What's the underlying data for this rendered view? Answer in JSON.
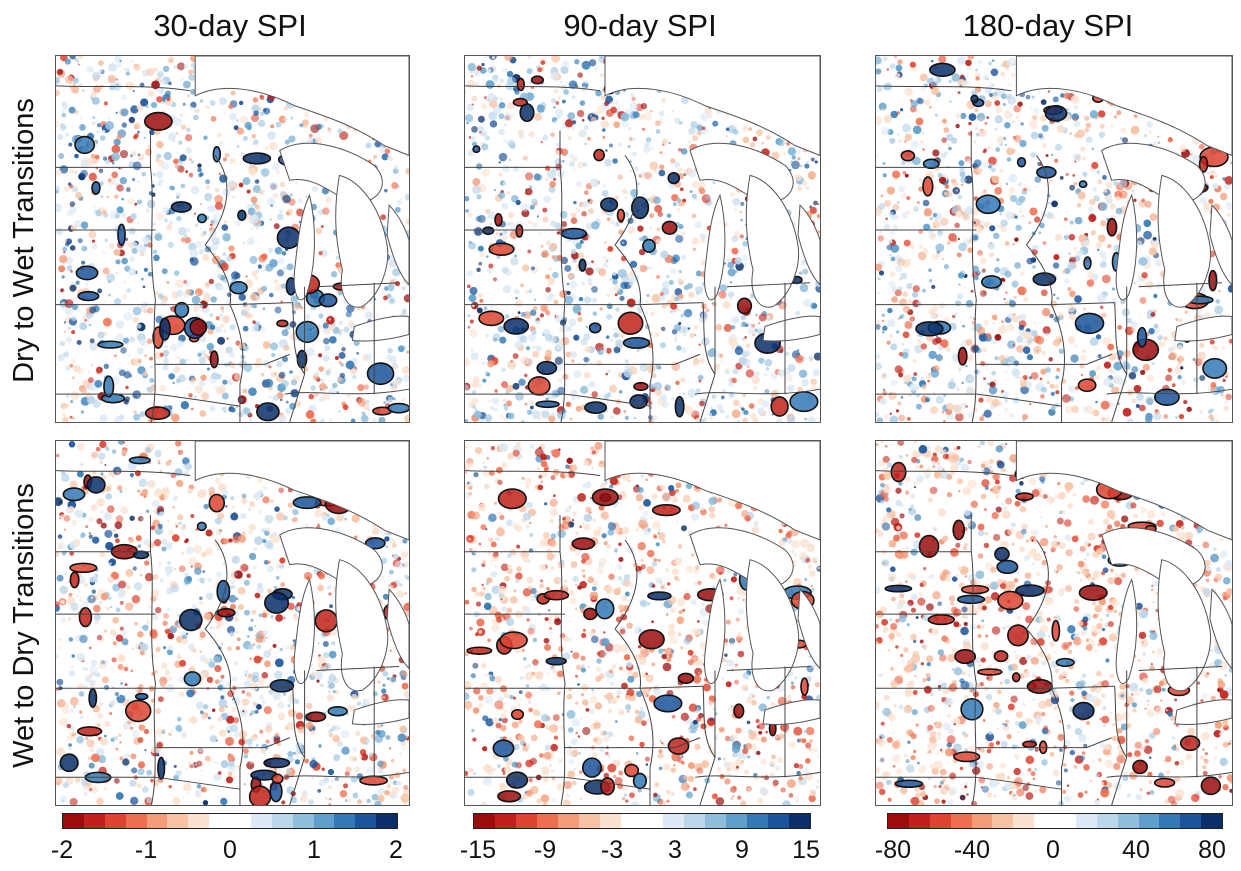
{
  "columns": [
    {
      "title": "30-day SPI",
      "ticks": [
        "-2",
        "-1",
        "0",
        "1",
        "2"
      ],
      "range": [
        -2,
        2
      ]
    },
    {
      "title": "90-day SPI",
      "ticks": [
        "-15",
        "-9",
        "-3",
        "3",
        "9",
        "15"
      ],
      "range": [
        -15,
        15
      ]
    },
    {
      "title": "180-day SPI",
      "ticks": [
        "-80",
        "-40",
        "0",
        "40",
        "80"
      ],
      "range": [
        -80,
        80
      ]
    }
  ],
  "rows": [
    {
      "label": "Dry to Wet Transitions"
    },
    {
      "label": "Wet to Dry Transitions"
    }
  ],
  "colormap": {
    "name": "red-white-blue diverging",
    "colors": [
      "#9b0d0d",
      "#c0221b",
      "#dd4431",
      "#ee6e50",
      "#f59b78",
      "#f8c2a4",
      "#fbe1cf",
      "#ffffff",
      "#ffffff",
      "#dde9f4",
      "#bcd6ea",
      "#90bedd",
      "#5e9fcc",
      "#3379b5",
      "#1b549a",
      "#0b2f6a"
    ]
  },
  "colors": {
    "dry": "#c0392b",
    "wet": "#2166ac",
    "contour": "#111111",
    "boundary": "#444444"
  }
}
